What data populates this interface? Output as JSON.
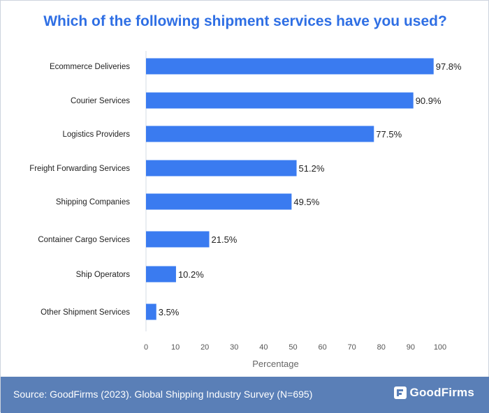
{
  "title": "Which of the following shipment services have you used?",
  "footer": {
    "source": "Source: GoodFirms (2023). Global Shipping Industry Survey (N=695)",
    "brand": "GoodFirms",
    "brand_icon": "goodfirms-logo-icon"
  },
  "colors": {
    "bar": "#3a7bf0",
    "title": "#2f6fe4",
    "footer_bg": "#5a7fb7"
  },
  "chart_data": {
    "type": "bar",
    "orientation": "horizontal",
    "title": "Which of the following shipment services have you used?",
    "xlabel": "Percentage",
    "ylabel": "",
    "xlim": [
      0,
      100
    ],
    "xticks": [
      0,
      10,
      20,
      30,
      40,
      50,
      60,
      70,
      80,
      90,
      100
    ],
    "categories": [
      "Ecommerce Deliveries",
      "Courier Services",
      "Logistics Providers",
      "Freight Forwarding Services",
      "Shipping Companies",
      "Container Cargo Services",
      "Ship Operators",
      "Other Shipment Services"
    ],
    "values": [
      97.8,
      90.9,
      77.5,
      51.2,
      49.5,
      21.5,
      10.2,
      3.5
    ],
    "value_labels": [
      "97.8%",
      "90.9%",
      "77.5%",
      "51.2%",
      "49.5%",
      "21.5%",
      "10.2%",
      "3.5%"
    ],
    "grid": false
  }
}
